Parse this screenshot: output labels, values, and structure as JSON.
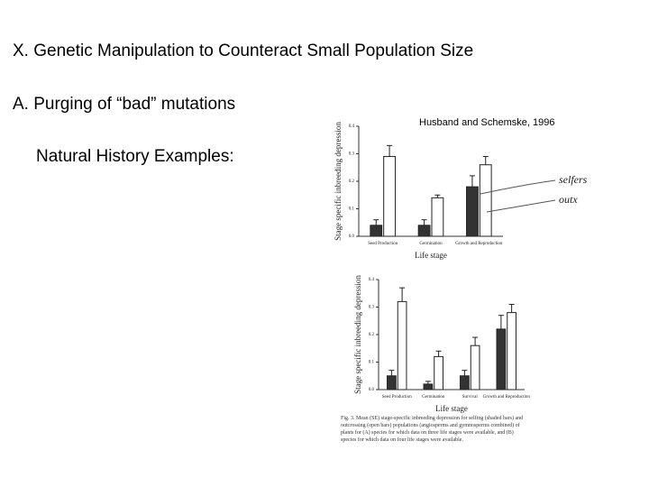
{
  "slide": {
    "title": "X. Genetic Manipulation to Counteract Small Population Size",
    "point": "A.  Purging of “bad” mutations",
    "subpoint": "Natural History Examples:",
    "citation": "Husband and Schemske, 1996",
    "caption": "Fig. 3.   Mean (SE) stage-specific inbreeding depression for selfing (shaded bars) and outcrossing (open bars) populations (angiosperms and gymnosperms combined) of plants for (A) species for which data on three life stages were available, and (B) species for which data on four life stages were available."
  },
  "chart_data": [
    {
      "type": "bar",
      "ylabel": "Stage specific inbreeding depression",
      "xlabel": "Life stage",
      "categories": [
        "Seed Production",
        "Germination",
        "Growth and Reproduction"
      ],
      "series": [
        {
          "name": "selfers",
          "color": "#333333",
          "values": [
            0.04,
            0.04,
            0.18
          ],
          "errors": [
            0.02,
            0.02,
            0.04
          ]
        },
        {
          "name": "outx",
          "color": "#ffffff",
          "values": [
            0.29,
            0.14,
            0.26
          ],
          "errors": [
            0.04,
            0.01,
            0.03
          ]
        }
      ],
      "ylim": [
        0,
        0.4
      ],
      "yticks": [
        {
          "value": 0,
          "label": "0.0"
        },
        0.1,
        0.2,
        0.3,
        0.4
      ]
    },
    {
      "type": "bar",
      "ylabel": "Stage specific inbreeding depression",
      "xlabel": "Life stage",
      "categories": [
        "Seed Production",
        "Germination",
        "Survival",
        "Growth and Reproduction"
      ],
      "series": [
        {
          "color": "#333333",
          "values": [
            0.05,
            0.02,
            0.05,
            0.22
          ],
          "errors": [
            0.02,
            0.01,
            0.02,
            0.05
          ]
        },
        {
          "color": "#ffffff",
          "values": [
            0.32,
            0.12,
            0.16,
            0.28
          ],
          "errors": [
            0.05,
            0.02,
            0.03,
            0.03
          ]
        }
      ],
      "ylim": [
        0,
        0.4
      ],
      "yticks": [
        {
          "value": 0,
          "label": "0.0"
        },
        0.1,
        0.2,
        0.3,
        0.4
      ]
    }
  ]
}
